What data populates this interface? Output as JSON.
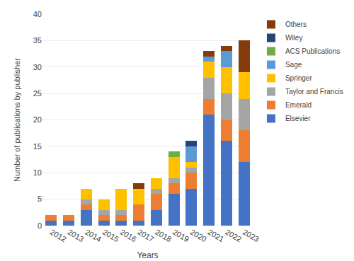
{
  "chart_data": {
    "type": "bar",
    "stacked": true,
    "xlabel": "Years",
    "ylabel": "Number of publications by publisher",
    "categories": [
      "2012",
      "2013",
      "2014",
      "2015",
      "2016",
      "2017",
      "2018",
      "2019",
      "2020",
      "2021",
      "2022",
      "2023"
    ],
    "series": [
      {
        "name": "Elsevier",
        "color": "#4472C4",
        "values": [
          1,
          1,
          3,
          1,
          1,
          1,
          3,
          6,
          7,
          21,
          16,
          12
        ]
      },
      {
        "name": "Emerald",
        "color": "#ED7D31",
        "values": [
          1,
          1,
          1,
          1,
          1,
          3,
          3,
          2,
          3,
          3,
          4,
          6
        ]
      },
      {
        "name": "Taylor and Francis",
        "color": "#A5A5A5",
        "values": [
          0,
          0,
          1,
          1,
          1,
          0,
          1,
          1,
          1,
          4,
          5,
          6
        ]
      },
      {
        "name": "Springer",
        "color": "#FFC000",
        "values": [
          0,
          0,
          2,
          2,
          4,
          3,
          2,
          4,
          1,
          3,
          5,
          5
        ]
      },
      {
        "name": "Sage",
        "color": "#5B9BD5",
        "values": [
          0,
          0,
          0,
          0,
          0,
          0,
          0,
          0,
          3,
          1,
          3,
          0
        ]
      },
      {
        "name": "ACS Publications",
        "color": "#70AD47",
        "values": [
          0,
          0,
          0,
          0,
          0,
          0,
          0,
          1,
          0,
          0,
          0,
          0
        ]
      },
      {
        "name": "Wiley",
        "color": "#264478",
        "values": [
          0,
          0,
          0,
          0,
          0,
          0,
          0,
          0,
          1,
          0,
          0,
          0
        ]
      },
      {
        "name": "Others",
        "color": "#843C0C",
        "values": [
          0,
          0,
          0,
          0,
          0,
          1,
          0,
          0,
          0,
          1,
          1,
          6
        ]
      }
    ],
    "ylim": [
      0,
      40
    ],
    "yticks": [
      0,
      5,
      10,
      15,
      20,
      25,
      30,
      35,
      40
    ],
    "grid": true,
    "legend": "right"
  }
}
